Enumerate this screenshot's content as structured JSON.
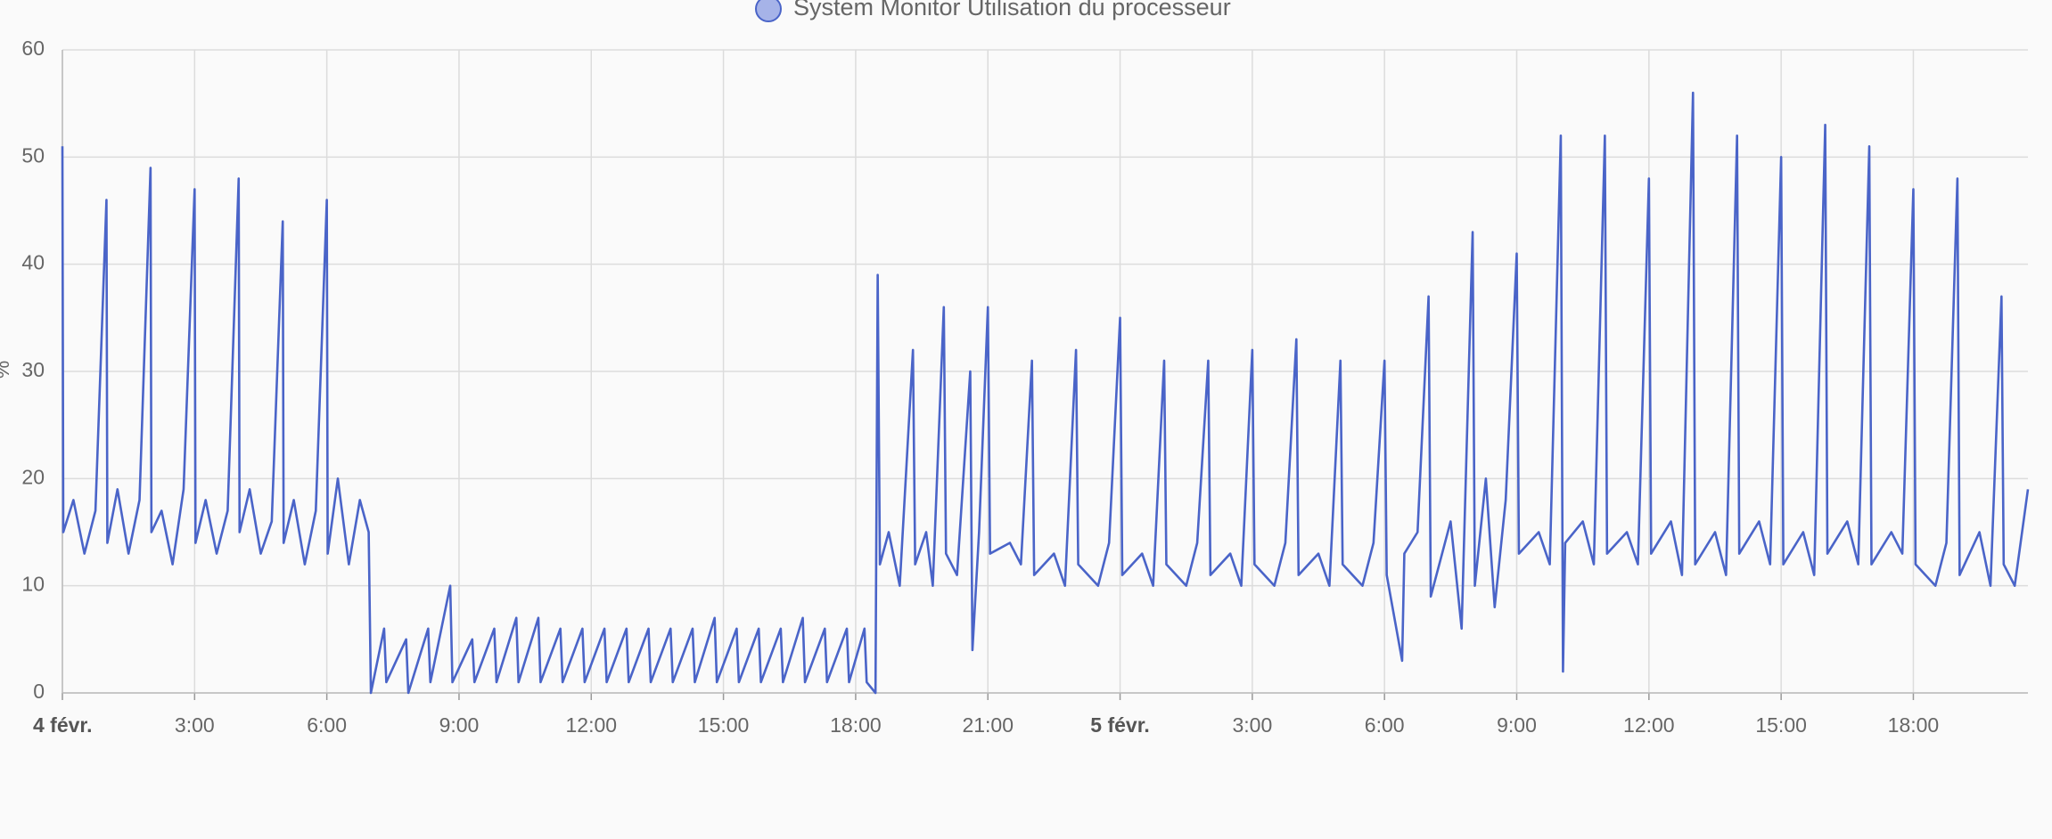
{
  "chart_data": {
    "type": "line",
    "y_label": "%",
    "xlim": [
      0,
      44.6
    ],
    "ylim": [
      0,
      60
    ],
    "yticks": [
      0,
      10,
      20,
      30,
      40,
      50,
      60
    ],
    "xticks": [
      {
        "value": 0,
        "label": "4 févr."
      },
      {
        "value": 3,
        "label": "3:00"
      },
      {
        "value": 6,
        "label": "6:00"
      },
      {
        "value": 9,
        "label": "9:00"
      },
      {
        "value": 12,
        "label": "12:00"
      },
      {
        "value": 15,
        "label": "15:00"
      },
      {
        "value": 18,
        "label": "18:00"
      },
      {
        "value": 21,
        "label": "21:00"
      },
      {
        "value": 24,
        "label": "5 févr."
      },
      {
        "value": 27,
        "label": "3:00"
      },
      {
        "value": 30,
        "label": "6:00"
      },
      {
        "value": 33,
        "label": "9:00"
      },
      {
        "value": 36,
        "label": "12:00"
      },
      {
        "value": 39,
        "label": "15:00"
      },
      {
        "value": 42,
        "label": "18:00"
      }
    ],
    "grid": true,
    "x": [
      0,
      0.02,
      0.25,
      0.5,
      0.75,
      1,
      1.02,
      1.25,
      1.5,
      1.75,
      2,
      2.02,
      2.25,
      2.5,
      2.75,
      3,
      3.02,
      3.25,
      3.5,
      3.75,
      4,
      4.02,
      4.25,
      4.5,
      4.75,
      5,
      5.02,
      5.25,
      5.5,
      5.75,
      6,
      6.02,
      6.25,
      6.5,
      6.75,
      6.95,
      7,
      7.3,
      7.35,
      7.8,
      7.85,
      8.3,
      8.35,
      8.8,
      8.85,
      9.3,
      9.35,
      9.8,
      9.85,
      10.3,
      10.35,
      10.8,
      10.85,
      11.3,
      11.35,
      11.8,
      11.85,
      12.3,
      12.35,
      12.8,
      12.85,
      13.3,
      13.35,
      13.8,
      13.85,
      14.3,
      14.35,
      14.8,
      14.85,
      15.3,
      15.35,
      15.8,
      15.85,
      16.3,
      16.35,
      16.8,
      16.85,
      17.3,
      17.35,
      17.8,
      17.85,
      18.2,
      18.25,
      18.45,
      18.5,
      18.55,
      18.75,
      19,
      19.3,
      19.35,
      19.6,
      19.75,
      20,
      20.05,
      20.3,
      20.6,
      20.65,
      20.8,
      21,
      21.05,
      21.5,
      21.75,
      22,
      22.05,
      22.5,
      22.75,
      23,
      23.05,
      23.5,
      23.75,
      24,
      24.05,
      24.5,
      24.75,
      25,
      25.05,
      25.5,
      25.75,
      26,
      26.05,
      26.5,
      26.75,
      27,
      27.05,
      27.5,
      27.75,
      28,
      28.05,
      28.5,
      28.75,
      29,
      29.05,
      29.5,
      29.75,
      30,
      30.05,
      30.4,
      30.45,
      30.75,
      31,
      31.05,
      31.5,
      31.75,
      32,
      32.05,
      32.3,
      32.5,
      32.75,
      33,
      33.05,
      33.5,
      33.75,
      34,
      34.05,
      34.1,
      34.5,
      34.75,
      35,
      35.05,
      35.5,
      35.75,
      36,
      36.05,
      36.5,
      36.75,
      37,
      37.05,
      37.5,
      37.75,
      38,
      38.05,
      38.5,
      38.75,
      39,
      39.05,
      39.5,
      39.75,
      40,
      40.05,
      40.5,
      40.75,
      41,
      41.05,
      41.5,
      41.75,
      42,
      42.05,
      42.5,
      42.75,
      43,
      43.05,
      43.5,
      43.75,
      44,
      44.05,
      44.3,
      44.6
    ],
    "series": [
      {
        "name": "System Monitor Utilisation du processeur",
        "color": "#4a64c8",
        "values": [
          51,
          15,
          18,
          13,
          17,
          46,
          14,
          19,
          13,
          18,
          49,
          15,
          17,
          12,
          19,
          47,
          14,
          18,
          13,
          17,
          48,
          15,
          19,
          13,
          16,
          44,
          14,
          18,
          12,
          17,
          46,
          13,
          20,
          12,
          18,
          15,
          0,
          6,
          1,
          5,
          0,
          6,
          1,
          10,
          1,
          5,
          1,
          6,
          1,
          7,
          1,
          7,
          1,
          6,
          1,
          6,
          1,
          6,
          1,
          6,
          1,
          6,
          1,
          6,
          1,
          6,
          1,
          7,
          1,
          6,
          1,
          6,
          1,
          6,
          1,
          7,
          1,
          6,
          1,
          6,
          1,
          6,
          1,
          0,
          39,
          12,
          15,
          10,
          32,
          12,
          15,
          10,
          36,
          13,
          11,
          30,
          4,
          15,
          36,
          13,
          14,
          12,
          31,
          11,
          13,
          10,
          32,
          12,
          10,
          14,
          35,
          11,
          13,
          10,
          31,
          12,
          10,
          14,
          31,
          11,
          13,
          10,
          32,
          12,
          10,
          14,
          33,
          11,
          13,
          10,
          31,
          12,
          10,
          14,
          31,
          11,
          3,
          13,
          15,
          37,
          9,
          16,
          6,
          43,
          10,
          20,
          8,
          18,
          41,
          13,
          15,
          12,
          52,
          2,
          14,
          16,
          12,
          52,
          13,
          15,
          12,
          48,
          13,
          16,
          11,
          56,
          12,
          15,
          11,
          52,
          13,
          16,
          12,
          50,
          12,
          15,
          11,
          53,
          13,
          16,
          12,
          51,
          12,
          15,
          13,
          47,
          12,
          10,
          14,
          48,
          11,
          15,
          10,
          37,
          12,
          10,
          19
        ]
      }
    ]
  }
}
